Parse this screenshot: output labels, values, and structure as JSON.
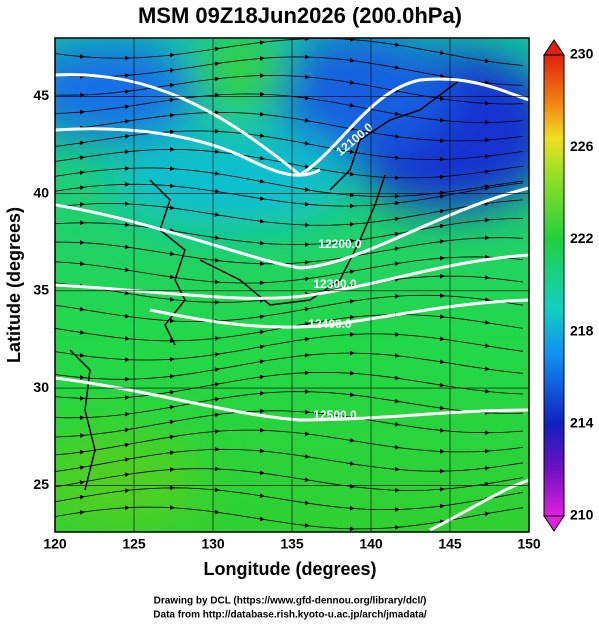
{
  "title": "MSM 09Z18Jun2026 (200.0hPa)",
  "x_axis": {
    "label": "Longitude (degrees)",
    "lim": [
      120,
      150
    ],
    "ticks": [
      120,
      125,
      130,
      135,
      140,
      145,
      150
    ]
  },
  "y_axis": {
    "label": "Latitude  (degrees)",
    "lim": [
      22.6,
      48.0
    ],
    "ticks": [
      25,
      30,
      35,
      40,
      45
    ]
  },
  "colorbar": {
    "lim": [
      210,
      230
    ],
    "ticks": [
      210,
      214,
      218,
      222,
      226,
      230
    ]
  },
  "contour_labels": [
    "12100.0",
    "12200.0",
    "12300.0",
    "12400.0",
    "12500.0"
  ],
  "credits": [
    "Drawing by DCL (https://www.gfd-dennou.org/library/dcl/)",
    "Data from http://database.rish.kyoto-u.ac.jp/arch/jmadata/"
  ]
}
